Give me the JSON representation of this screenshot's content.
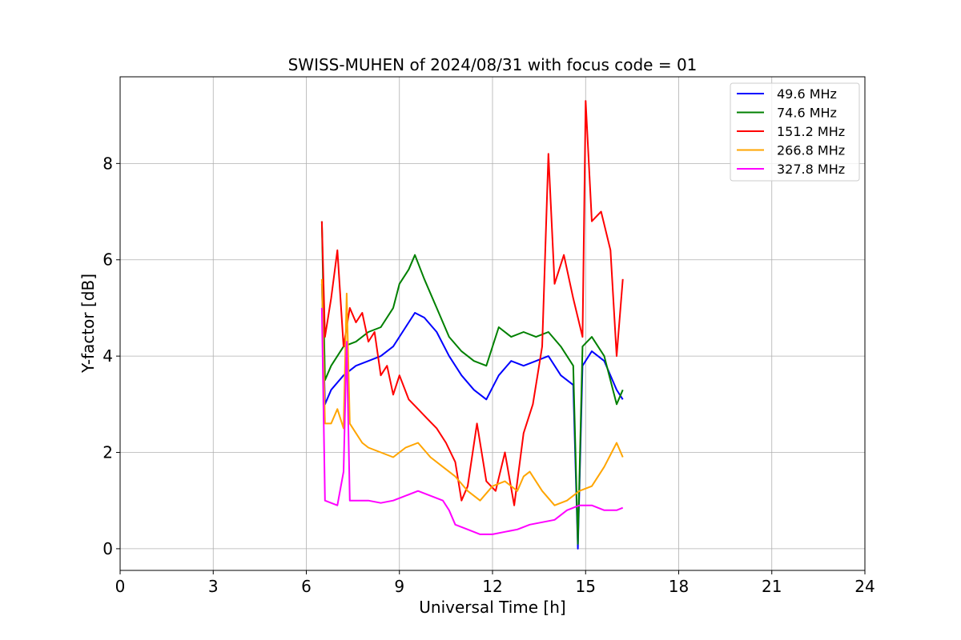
{
  "chart_data": {
    "type": "line",
    "title": "SWISS-MUHEN of 2024/08/31 with focus code = 01",
    "xlabel": "Universal Time [h]",
    "ylabel": "Y-factor [dB]",
    "xlim": [
      0,
      24
    ],
    "ylim": [
      -0.45,
      9.8
    ],
    "xticks": [
      0,
      3,
      6,
      9,
      12,
      15,
      18,
      21,
      24
    ],
    "yticks": [
      0,
      2,
      4,
      6,
      8
    ],
    "grid": true,
    "legend_position": "top-right",
    "series": [
      {
        "name": " 49.6 MHz",
        "color": "#0000ff",
        "x": [
          6.5,
          6.6,
          6.8,
          7.2,
          7.6,
          8.0,
          8.4,
          8.8,
          9.2,
          9.5,
          9.8,
          10.2,
          10.6,
          11.0,
          11.4,
          11.8,
          12.2,
          12.6,
          13.0,
          13.4,
          13.8,
          14.2,
          14.6,
          14.75,
          14.9,
          15.2,
          15.6,
          16.0,
          16.2
        ],
        "y": [
          5.5,
          3.0,
          3.3,
          3.6,
          3.8,
          3.9,
          4.0,
          4.2,
          4.6,
          4.9,
          4.8,
          4.5,
          4.0,
          3.6,
          3.3,
          3.1,
          3.6,
          3.9,
          3.8,
          3.9,
          4.0,
          3.6,
          3.4,
          0.0,
          3.8,
          4.1,
          3.9,
          3.3,
          3.1
        ]
      },
      {
        "name": " 74.6 MHz",
        "color": "#008000",
        "x": [
          6.5,
          6.6,
          6.8,
          7.2,
          7.6,
          8.0,
          8.4,
          8.8,
          9.0,
          9.3,
          9.5,
          9.8,
          10.2,
          10.6,
          11.0,
          11.4,
          11.8,
          12.2,
          12.6,
          13.0,
          13.4,
          13.8,
          14.2,
          14.6,
          14.75,
          14.9,
          15.2,
          15.6,
          16.0,
          16.2
        ],
        "y": [
          6.8,
          3.5,
          3.8,
          4.2,
          4.3,
          4.5,
          4.6,
          5.0,
          5.5,
          5.8,
          6.1,
          5.6,
          5.0,
          4.4,
          4.1,
          3.9,
          3.8,
          4.6,
          4.4,
          4.5,
          4.4,
          4.5,
          4.2,
          3.8,
          0.1,
          4.2,
          4.4,
          4.0,
          3.0,
          3.3
        ]
      },
      {
        "name": " 151.2 MHz",
        "color": "#ff0000",
        "x": [
          6.5,
          6.6,
          6.8,
          7.0,
          7.2,
          7.4,
          7.6,
          7.8,
          8.0,
          8.2,
          8.4,
          8.6,
          8.8,
          9.0,
          9.3,
          9.6,
          9.9,
          10.2,
          10.5,
          10.8,
          11.0,
          11.2,
          11.5,
          11.8,
          12.1,
          12.4,
          12.7,
          13.0,
          13.3,
          13.6,
          13.8,
          14.0,
          14.3,
          14.6,
          14.9,
          15.0,
          15.2,
          15.5,
          15.8,
          16.0,
          16.2
        ],
        "y": [
          6.8,
          4.4,
          5.2,
          6.2,
          4.2,
          5.0,
          4.7,
          4.9,
          4.3,
          4.5,
          3.6,
          3.8,
          3.2,
          3.6,
          3.1,
          2.9,
          2.7,
          2.5,
          2.2,
          1.8,
          1.0,
          1.3,
          2.6,
          1.4,
          1.2,
          2.0,
          0.9,
          2.4,
          3.0,
          4.2,
          8.2,
          5.5,
          6.1,
          5.2,
          4.4,
          9.3,
          6.8,
          7.0,
          6.2,
          4.0,
          5.6
        ]
      },
      {
        "name": " 266.8 MHz",
        "color": "#ffa500",
        "x": [
          6.5,
          6.6,
          6.8,
          7.0,
          7.2,
          7.3,
          7.4,
          7.6,
          7.8,
          8.0,
          8.4,
          8.8,
          9.2,
          9.6,
          10.0,
          10.4,
          10.8,
          11.2,
          11.6,
          12.0,
          12.4,
          12.8,
          13.0,
          13.2,
          13.6,
          14.0,
          14.4,
          14.8,
          15.2,
          15.6,
          16.0,
          16.2
        ],
        "y": [
          5.6,
          2.6,
          2.6,
          2.9,
          2.5,
          5.3,
          2.6,
          2.4,
          2.2,
          2.1,
          2.0,
          1.9,
          2.1,
          2.2,
          1.9,
          1.7,
          1.5,
          1.2,
          1.0,
          1.3,
          1.4,
          1.2,
          1.5,
          1.6,
          1.2,
          0.9,
          1.0,
          1.2,
          1.3,
          1.7,
          2.2,
          1.9
        ]
      },
      {
        "name": " 327.8 MHz",
        "color": "#ff00ff",
        "x": [
          6.5,
          6.6,
          6.8,
          7.0,
          7.2,
          7.3,
          7.4,
          7.6,
          8.0,
          8.4,
          8.8,
          9.2,
          9.6,
          10.0,
          10.4,
          10.6,
          10.8,
          11.2,
          11.6,
          12.0,
          12.4,
          12.8,
          13.2,
          13.6,
          14.0,
          14.4,
          14.8,
          15.2,
          15.6,
          16.0,
          16.2
        ],
        "y": [
          5.0,
          1.0,
          0.95,
          0.9,
          1.6,
          4.3,
          1.0,
          1.0,
          1.0,
          0.95,
          1.0,
          1.1,
          1.2,
          1.1,
          1.0,
          0.8,
          0.5,
          0.4,
          0.3,
          0.3,
          0.35,
          0.4,
          0.5,
          0.55,
          0.6,
          0.8,
          0.9,
          0.9,
          0.8,
          0.8,
          0.85
        ]
      }
    ]
  }
}
